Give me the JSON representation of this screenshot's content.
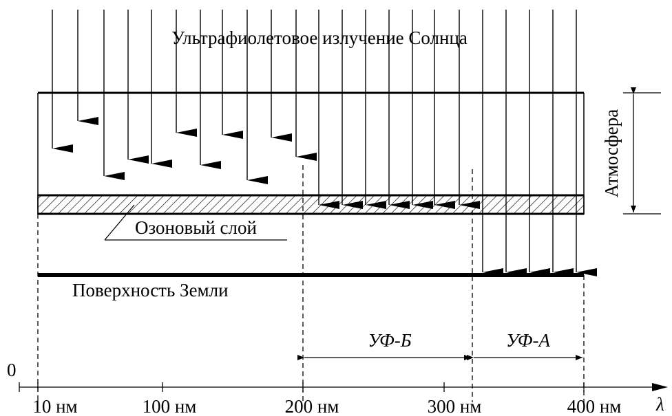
{
  "title": "Ультрафиолетовое излучение Солнца",
  "atmosphere_label": "Атмосфера",
  "ozone_label": "Озоновый слой",
  "surface_label": "Поверхность Земли",
  "origin_label": "0",
  "axis_symbol": "λ",
  "ticks": [
    "10 нм",
    "100 нм",
    "200 нм",
    "300 нм",
    "400 нм"
  ],
  "bands": [
    {
      "label": "УФ-Б"
    },
    {
      "label": "УФ-А"
    }
  ],
  "colors": {
    "ink": "#000000",
    "background": "#ffffff"
  }
}
